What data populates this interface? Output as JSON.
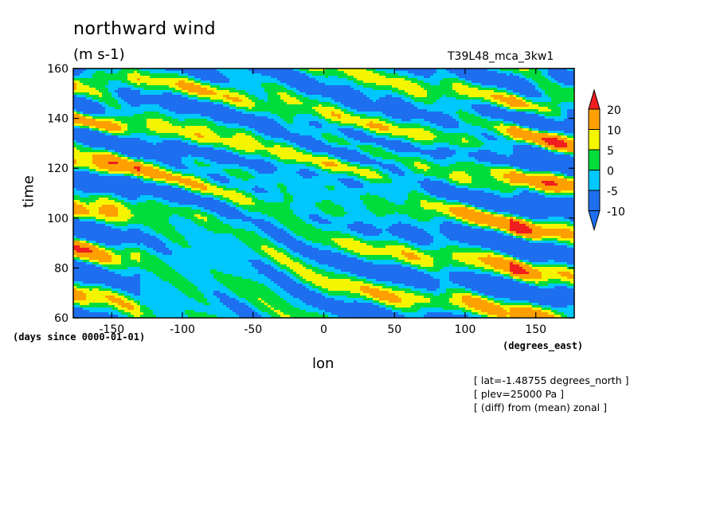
{
  "chart_data": {
    "type": "heatmap",
    "title": "northward wind",
    "units": "(m s-1)",
    "run_name": "T39L48_mca_3kw1",
    "xlabel": "lon",
    "ylabel": "time",
    "x_unit_label": "(degrees_east)",
    "y_unit_label": "(days since 0000-01-01)",
    "xlim": [
      -177.19,
      177.19
    ],
    "ylim": [
      60,
      160
    ],
    "x_ticks": [
      -150,
      -100,
      -50,
      0,
      50,
      100,
      150
    ],
    "y_ticks": [
      60,
      80,
      100,
      120,
      140,
      160
    ],
    "colorbar": {
      "levels": [
        -10,
        -5,
        0,
        5,
        10,
        20
      ],
      "colors": [
        "#1E6EF0",
        "#00C8FF",
        "#00DC3C",
        "#F5F500",
        "#FFA000",
        "#F01E1E"
      ],
      "extend": "both"
    },
    "annotations": [
      "[ lat=-1.48755 degrees_north ]",
      "[ plev=25000 Pa ]",
      "[ (diff) from (mean) zonal ]"
    ],
    "grid": false
  }
}
